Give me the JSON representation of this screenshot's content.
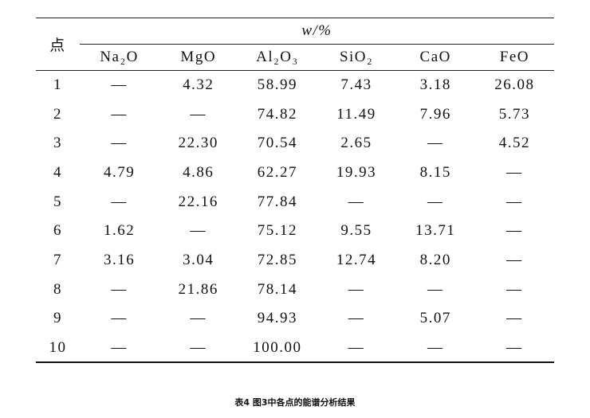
{
  "table": {
    "corner": "点",
    "group_header": "w/%",
    "columns": [
      "Na₂O",
      "MgO",
      "Al₂O₃",
      "SiO₂",
      "CaO",
      "FeO"
    ],
    "rows": [
      [
        "1",
        "—",
        "4.32",
        "58.99",
        "7.43",
        "3.18",
        "26.08"
      ],
      [
        "2",
        "—",
        "—",
        "74.82",
        "11.49",
        "7.96",
        "5.73"
      ],
      [
        "3",
        "—",
        "22.30",
        "70.54",
        "2.65",
        "—",
        "4.52"
      ],
      [
        "4",
        "4.79",
        "4.86",
        "62.27",
        "19.93",
        "8.15",
        "—"
      ],
      [
        "5",
        "—",
        "22.16",
        "77.84",
        "—",
        "—",
        "—"
      ],
      [
        "6",
        "1.62",
        "—",
        "75.12",
        "9.55",
        "13.71",
        "—"
      ],
      [
        "7",
        "3.16",
        "3.04",
        "72.85",
        "12.74",
        "8.20",
        "—"
      ],
      [
        "8",
        "—",
        "21.86",
        "78.14",
        "—",
        "—",
        "—"
      ],
      [
        "9",
        "—",
        "—",
        "94.93",
        "—",
        "5.07",
        "—"
      ],
      [
        "10",
        "—",
        "—",
        "100.00",
        "—",
        "—",
        "—"
      ]
    ]
  },
  "caption": "表4 图3中各点的能谱分析结果"
}
